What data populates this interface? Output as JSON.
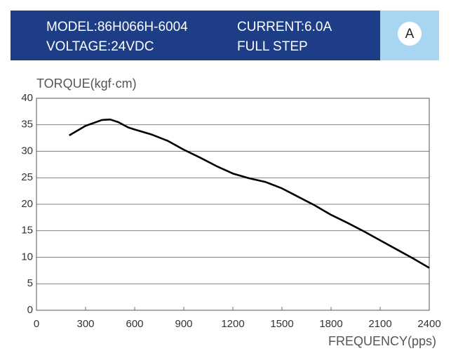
{
  "header": {
    "model": "MODEL:86H066H-6004",
    "current": "CURRENT:6.0A",
    "voltage": "VOLTAGE:24VDC",
    "step": "FULL STEP",
    "badge": "A"
  },
  "chart_data": {
    "type": "line",
    "y_label": "TORQUE(kgf·cm)",
    "x_label": "FREQUENCY(pps)",
    "x": [
      200,
      300,
      400,
      450,
      500,
      560,
      600,
      700,
      800,
      900,
      1000,
      1100,
      1200,
      1300,
      1400,
      1500,
      1600,
      1700,
      1800,
      1900,
      2000,
      2100,
      2200,
      2300,
      2400
    ],
    "series": [
      {
        "name": "Torque",
        "color": "#000000",
        "values": [
          33,
          34.8,
          35.9,
          36,
          35.5,
          34.5,
          34.1,
          33.2,
          32,
          30.3,
          28.8,
          27.2,
          25.8,
          24.9,
          24.2,
          23,
          21.4,
          19.8,
          18,
          16.5,
          14.9,
          13.2,
          11.5,
          9.8,
          8
        ]
      }
    ],
    "xlim": [
      0,
      2400
    ],
    "xticks": [
      0,
      300,
      600,
      900,
      1200,
      1500,
      1800,
      2100,
      2400
    ],
    "ylim": [
      0,
      40
    ],
    "yticks": [
      0,
      5,
      10,
      15,
      20,
      25,
      30,
      35,
      40
    ],
    "grid": true
  }
}
